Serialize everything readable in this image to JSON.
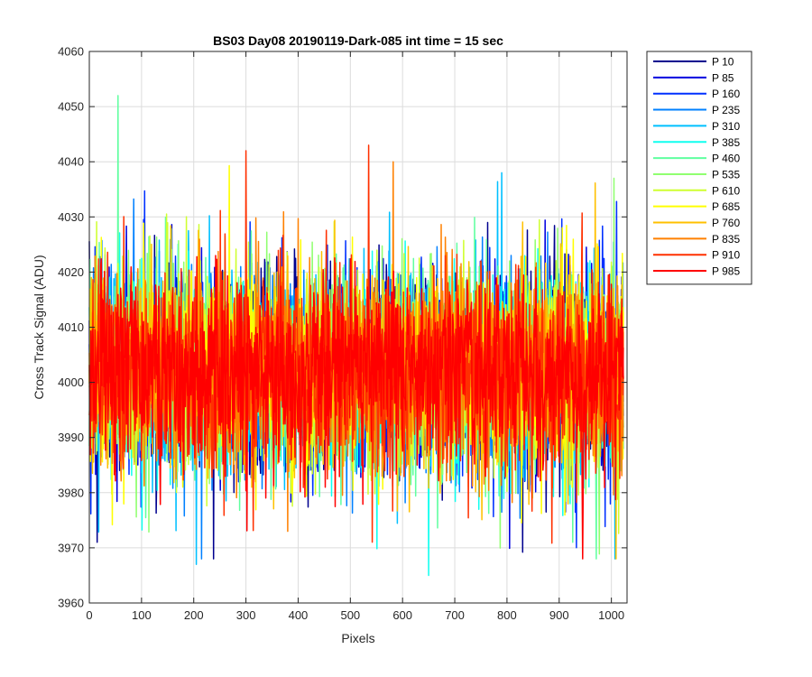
{
  "chart_data": {
    "type": "line",
    "title": "BS03 Day08 20190119-Dark-085 int time = 15 sec",
    "xlabel": "Pixels",
    "ylabel": "Cross Track Signal (ADU)",
    "xlim": [
      0,
      1030
    ],
    "ylim": [
      3960,
      4060
    ],
    "x_ticks": [
      0,
      100,
      200,
      300,
      400,
      500,
      600,
      700,
      800,
      900,
      1000
    ],
    "y_ticks": [
      3960,
      3970,
      3980,
      3990,
      4000,
      4010,
      4020,
      4030,
      4040,
      4050,
      4060
    ],
    "grid": true,
    "legend_position": "outside-right",
    "x_points": 1024,
    "y_center": 4002,
    "y_spread_typical": [
      3985,
      4022
    ],
    "series": [
      {
        "name": "P 10",
        "color": "#00008F"
      },
      {
        "name": "P 85",
        "color": "#0000DF"
      },
      {
        "name": "P 160",
        "color": "#0030FF"
      },
      {
        "name": "P 235",
        "color": "#0080FF"
      },
      {
        "name": "P 310",
        "color": "#00C0FF"
      },
      {
        "name": "P 385",
        "color": "#10FFEF"
      },
      {
        "name": "P 460",
        "color": "#60FFA0"
      },
      {
        "name": "P 535",
        "color": "#90FF70"
      },
      {
        "name": "P 610",
        "color": "#CFFF30"
      },
      {
        "name": "P 685",
        "color": "#FFFF00"
      },
      {
        "name": "P 760",
        "color": "#FFC000"
      },
      {
        "name": "P 835",
        "color": "#FF8000"
      },
      {
        "name": "P 910",
        "color": "#FF3000"
      },
      {
        "name": "P 985",
        "color": "#FF0000"
      }
    ],
    "notable_peaks": [
      {
        "series": "P 460",
        "x": 55,
        "y": 4052
      },
      {
        "series": "P 910",
        "x": 300,
        "y": 4042
      },
      {
        "series": "P 910",
        "x": 535,
        "y": 4043
      },
      {
        "series": "P 385",
        "x": 650,
        "y": 3965
      },
      {
        "series": "P 310",
        "x": 205,
        "y": 3967
      },
      {
        "series": "P 310",
        "x": 790,
        "y": 4038
      },
      {
        "series": "P 535",
        "x": 1005,
        "y": 4037
      },
      {
        "series": "P 10",
        "x": 15,
        "y": 3971
      },
      {
        "series": "P 835",
        "x": 380,
        "y": 3973
      }
    ]
  }
}
